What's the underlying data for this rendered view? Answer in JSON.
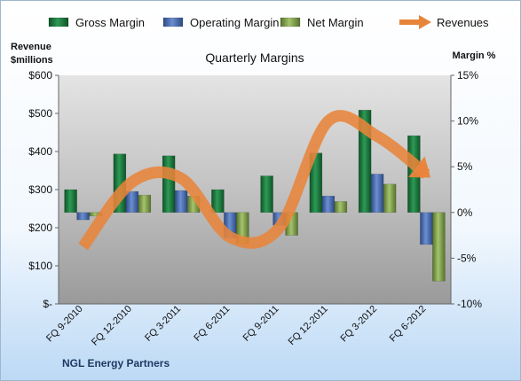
{
  "chart_data": {
    "type": "bar",
    "title": "Quarterly Margins",
    "footer": "NGL Energy Partners",
    "left_axis": {
      "label_line1": "Revenue",
      "label_line2": "$millions",
      "ticks": [
        "$-",
        "$100",
        "$200",
        "$300",
        "$400",
        "$500",
        "$600"
      ],
      "range": [
        0,
        600
      ]
    },
    "right_axis": {
      "label": "Margin %",
      "ticks": [
        "-10%",
        "-5%",
        "0%",
        "5%",
        "10%",
        "15%"
      ],
      "range": [
        -10,
        15
      ]
    },
    "categories": [
      "FQ 9-2010",
      "FQ 12-2010",
      "FQ 3-2011",
      "FQ 6-2011",
      "FQ 9-2011",
      "FQ 12-2011",
      "FQ 3-2012",
      "FQ 6-2012"
    ],
    "series": [
      {
        "name": "Gross Margin",
        "axis": "right",
        "kind": "bar",
        "color": "#1e7a3e",
        "values": [
          2.5,
          6.4,
          6.2,
          2.5,
          4.0,
          6.5,
          11.2,
          8.4
        ]
      },
      {
        "name": "Operating Margin",
        "axis": "right",
        "kind": "bar",
        "color": "#4a6fb5",
        "values": [
          -0.8,
          2.3,
          2.4,
          -2.8,
          -1.4,
          1.8,
          4.2,
          -3.5
        ]
      },
      {
        "name": "Net Margin",
        "axis": "right",
        "kind": "bar",
        "color": "#7fa14a",
        "values": [
          -0.4,
          1.9,
          1.8,
          -3.4,
          -2.5,
          1.2,
          3.1,
          -7.5
        ]
      },
      {
        "name": "Revenues",
        "axis": "left",
        "kind": "line",
        "color": "#e8843a",
        "values": [
          150,
          320,
          330,
          175,
          200,
          480,
          440,
          340
        ]
      }
    ],
    "legend_position": "top",
    "grid": false
  }
}
